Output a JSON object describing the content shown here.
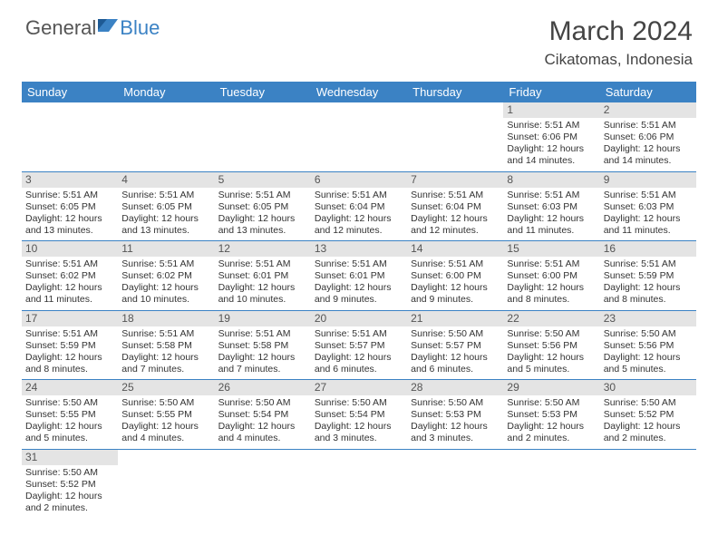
{
  "brand": {
    "part1": "General",
    "part2": "Blue"
  },
  "title": "March 2024",
  "location": "Cikatomas, Indonesia",
  "colors": {
    "header_bg": "#3b82c4",
    "header_fg": "#ffffff",
    "daynum_bg": "#e4e4e4",
    "border": "#3b82c4",
    "text": "#333333"
  },
  "weekdays": [
    "Sunday",
    "Monday",
    "Tuesday",
    "Wednesday",
    "Thursday",
    "Friday",
    "Saturday"
  ],
  "weeks": [
    [
      null,
      null,
      null,
      null,
      null,
      {
        "n": "1",
        "sr": "Sunrise: 5:51 AM",
        "ss": "Sunset: 6:06 PM",
        "dl": "Daylight: 12 hours and 14 minutes."
      },
      {
        "n": "2",
        "sr": "Sunrise: 5:51 AM",
        "ss": "Sunset: 6:06 PM",
        "dl": "Daylight: 12 hours and 14 minutes."
      }
    ],
    [
      {
        "n": "3",
        "sr": "Sunrise: 5:51 AM",
        "ss": "Sunset: 6:05 PM",
        "dl": "Daylight: 12 hours and 13 minutes."
      },
      {
        "n": "4",
        "sr": "Sunrise: 5:51 AM",
        "ss": "Sunset: 6:05 PM",
        "dl": "Daylight: 12 hours and 13 minutes."
      },
      {
        "n": "5",
        "sr": "Sunrise: 5:51 AM",
        "ss": "Sunset: 6:05 PM",
        "dl": "Daylight: 12 hours and 13 minutes."
      },
      {
        "n": "6",
        "sr": "Sunrise: 5:51 AM",
        "ss": "Sunset: 6:04 PM",
        "dl": "Daylight: 12 hours and 12 minutes."
      },
      {
        "n": "7",
        "sr": "Sunrise: 5:51 AM",
        "ss": "Sunset: 6:04 PM",
        "dl": "Daylight: 12 hours and 12 minutes."
      },
      {
        "n": "8",
        "sr": "Sunrise: 5:51 AM",
        "ss": "Sunset: 6:03 PM",
        "dl": "Daylight: 12 hours and 11 minutes."
      },
      {
        "n": "9",
        "sr": "Sunrise: 5:51 AM",
        "ss": "Sunset: 6:03 PM",
        "dl": "Daylight: 12 hours and 11 minutes."
      }
    ],
    [
      {
        "n": "10",
        "sr": "Sunrise: 5:51 AM",
        "ss": "Sunset: 6:02 PM",
        "dl": "Daylight: 12 hours and 11 minutes."
      },
      {
        "n": "11",
        "sr": "Sunrise: 5:51 AM",
        "ss": "Sunset: 6:02 PM",
        "dl": "Daylight: 12 hours and 10 minutes."
      },
      {
        "n": "12",
        "sr": "Sunrise: 5:51 AM",
        "ss": "Sunset: 6:01 PM",
        "dl": "Daylight: 12 hours and 10 minutes."
      },
      {
        "n": "13",
        "sr": "Sunrise: 5:51 AM",
        "ss": "Sunset: 6:01 PM",
        "dl": "Daylight: 12 hours and 9 minutes."
      },
      {
        "n": "14",
        "sr": "Sunrise: 5:51 AM",
        "ss": "Sunset: 6:00 PM",
        "dl": "Daylight: 12 hours and 9 minutes."
      },
      {
        "n": "15",
        "sr": "Sunrise: 5:51 AM",
        "ss": "Sunset: 6:00 PM",
        "dl": "Daylight: 12 hours and 8 minutes."
      },
      {
        "n": "16",
        "sr": "Sunrise: 5:51 AM",
        "ss": "Sunset: 5:59 PM",
        "dl": "Daylight: 12 hours and 8 minutes."
      }
    ],
    [
      {
        "n": "17",
        "sr": "Sunrise: 5:51 AM",
        "ss": "Sunset: 5:59 PM",
        "dl": "Daylight: 12 hours and 8 minutes."
      },
      {
        "n": "18",
        "sr": "Sunrise: 5:51 AM",
        "ss": "Sunset: 5:58 PM",
        "dl": "Daylight: 12 hours and 7 minutes."
      },
      {
        "n": "19",
        "sr": "Sunrise: 5:51 AM",
        "ss": "Sunset: 5:58 PM",
        "dl": "Daylight: 12 hours and 7 minutes."
      },
      {
        "n": "20",
        "sr": "Sunrise: 5:51 AM",
        "ss": "Sunset: 5:57 PM",
        "dl": "Daylight: 12 hours and 6 minutes."
      },
      {
        "n": "21",
        "sr": "Sunrise: 5:50 AM",
        "ss": "Sunset: 5:57 PM",
        "dl": "Daylight: 12 hours and 6 minutes."
      },
      {
        "n": "22",
        "sr": "Sunrise: 5:50 AM",
        "ss": "Sunset: 5:56 PM",
        "dl": "Daylight: 12 hours and 5 minutes."
      },
      {
        "n": "23",
        "sr": "Sunrise: 5:50 AM",
        "ss": "Sunset: 5:56 PM",
        "dl": "Daylight: 12 hours and 5 minutes."
      }
    ],
    [
      {
        "n": "24",
        "sr": "Sunrise: 5:50 AM",
        "ss": "Sunset: 5:55 PM",
        "dl": "Daylight: 12 hours and 5 minutes."
      },
      {
        "n": "25",
        "sr": "Sunrise: 5:50 AM",
        "ss": "Sunset: 5:55 PM",
        "dl": "Daylight: 12 hours and 4 minutes."
      },
      {
        "n": "26",
        "sr": "Sunrise: 5:50 AM",
        "ss": "Sunset: 5:54 PM",
        "dl": "Daylight: 12 hours and 4 minutes."
      },
      {
        "n": "27",
        "sr": "Sunrise: 5:50 AM",
        "ss": "Sunset: 5:54 PM",
        "dl": "Daylight: 12 hours and 3 minutes."
      },
      {
        "n": "28",
        "sr": "Sunrise: 5:50 AM",
        "ss": "Sunset: 5:53 PM",
        "dl": "Daylight: 12 hours and 3 minutes."
      },
      {
        "n": "29",
        "sr": "Sunrise: 5:50 AM",
        "ss": "Sunset: 5:53 PM",
        "dl": "Daylight: 12 hours and 2 minutes."
      },
      {
        "n": "30",
        "sr": "Sunrise: 5:50 AM",
        "ss": "Sunset: 5:52 PM",
        "dl": "Daylight: 12 hours and 2 minutes."
      }
    ],
    [
      {
        "n": "31",
        "sr": "Sunrise: 5:50 AM",
        "ss": "Sunset: 5:52 PM",
        "dl": "Daylight: 12 hours and 2 minutes."
      },
      null,
      null,
      null,
      null,
      null,
      null
    ]
  ]
}
